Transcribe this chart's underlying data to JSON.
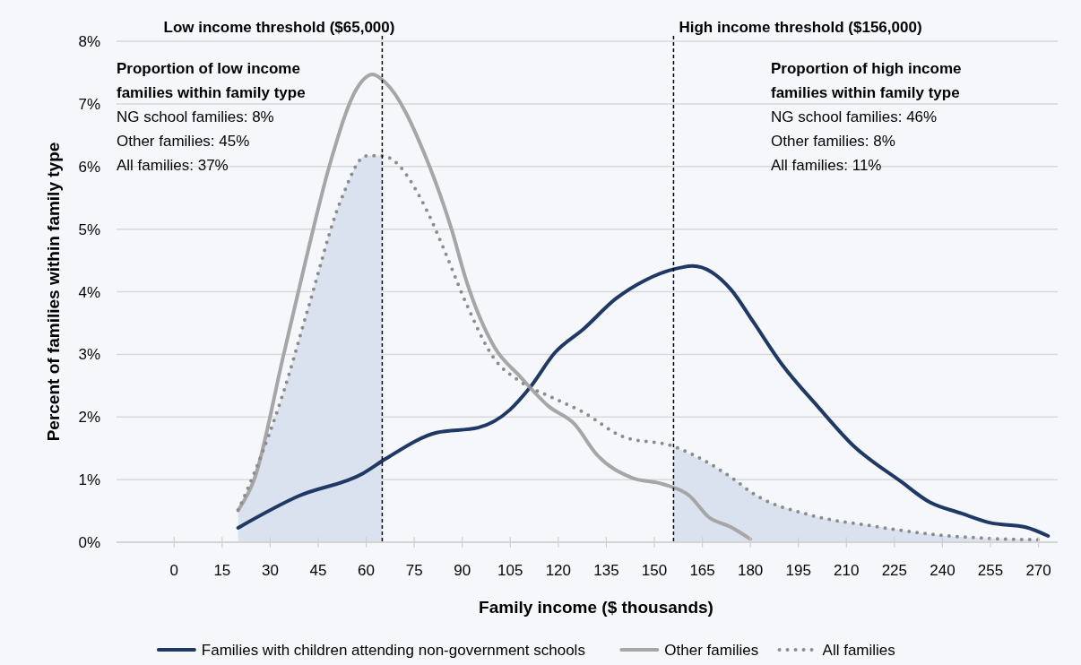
{
  "chart_data": {
    "type": "line",
    "xlabel": "Family income ($ thousands)",
    "ylabel": "Percent of families within family type",
    "xlim": [
      -18,
      276
    ],
    "ylim": [
      0,
      8
    ],
    "xticks": [
      0,
      15,
      30,
      45,
      60,
      75,
      90,
      105,
      120,
      135,
      150,
      165,
      180,
      195,
      210,
      225,
      240,
      255,
      270
    ],
    "yticks": [
      {
        "value": 0,
        "label": "0%"
      },
      {
        "value": 1,
        "label": "1%"
      },
      {
        "value": 2,
        "label": "2%"
      },
      {
        "value": 3,
        "label": "3%"
      },
      {
        "value": 4,
        "label": "4%"
      },
      {
        "value": 5,
        "label": "5%"
      },
      {
        "value": 6,
        "label": "6%"
      },
      {
        "value": 7,
        "label": "7%"
      },
      {
        "value": 8,
        "label": "8%"
      }
    ],
    "grid": "y",
    "legend": "bottom",
    "series": [
      {
        "type": "area",
        "color": "#dae1ef",
        "x": [
          20,
          25,
          34,
          42,
          52,
          60,
          65
        ],
        "values": [
          0.51,
          1.1,
          2.37,
          3.76,
          5.45,
          6.17,
          6.17
        ]
      },
      {
        "type": "area",
        "color": "#dae1ef",
        "x": [
          156,
          175,
          180.5,
          199,
          218,
          236,
          255,
          270
        ],
        "values": [
          1.53,
          1.0,
          0.79,
          0.43,
          0.26,
          0.13,
          0.06,
          0.04
        ]
      },
      {
        "name": "Families with children attending non-government schools",
        "color": "#1f3864",
        "line_style": "solid",
        "x": [
          20,
          39,
          59,
          66,
          82,
          95,
          105,
          111,
          119,
          128,
          138,
          147,
          156,
          162,
          174,
          180.5,
          190,
          201,
          212,
          227,
          236,
          246,
          255,
          266,
          273
        ],
        "values": [
          0.23,
          0.74,
          1.1,
          1.33,
          1.75,
          1.83,
          2.12,
          2.46,
          3.03,
          3.41,
          3.89,
          4.18,
          4.36,
          4.41,
          4.03,
          3.55,
          2.83,
          2.17,
          1.55,
          0.97,
          0.64,
          0.46,
          0.31,
          0.24,
          0.1
        ]
      },
      {
        "name": "Other families",
        "color": "#a6a6a6",
        "line_style": "solid",
        "x": [
          20,
          25,
          34,
          41,
          49,
          57,
          62,
          66,
          79,
          87,
          91,
          100,
          108,
          117,
          125,
          132,
          143,
          152.5,
          161,
          167,
          174,
          180
        ],
        "values": [
          0.51,
          1.0,
          2.95,
          4.48,
          6.1,
          7.24,
          7.47,
          7.34,
          6.1,
          4.94,
          4.22,
          3.12,
          2.65,
          2.17,
          1.89,
          1.4,
          1.03,
          0.93,
          0.74,
          0.4,
          0.24,
          0.05
        ]
      },
      {
        "name": "All families",
        "color": "#8c8c8c",
        "line_style": "dotted",
        "x": [
          20,
          25,
          34,
          42,
          52,
          60,
          65,
          79,
          84.5,
          91,
          100,
          108,
          119,
          128,
          140,
          156,
          175,
          180.5,
          199,
          218,
          236,
          255,
          270
        ],
        "values": [
          0.51,
          1.1,
          2.37,
          3.76,
          5.45,
          6.17,
          6.17,
          5.29,
          4.65,
          3.84,
          2.93,
          2.57,
          2.29,
          2.07,
          1.69,
          1.53,
          1.0,
          0.79,
          0.43,
          0.26,
          0.13,
          0.06,
          0.04
        ]
      }
    ],
    "ref_lines": [
      {
        "axis": "x",
        "value": 65,
        "label": "Low income threshold ($65,000)",
        "color": "#000000",
        "line_style": "dashed"
      },
      {
        "axis": "x",
        "value": 156,
        "label": "High income threshold ($156,000)",
        "color": "#000000",
        "line_style": "dashed"
      }
    ],
    "annotations": [
      "Proportion  of low income families within family type",
      "NG school families: 8%",
      "Other families: 45%",
      "All families: 37%",
      "Proportion  of high income families within family type",
      "NG school families: 46%",
      "Other families: 8%",
      "All families: 11%"
    ]
  }
}
